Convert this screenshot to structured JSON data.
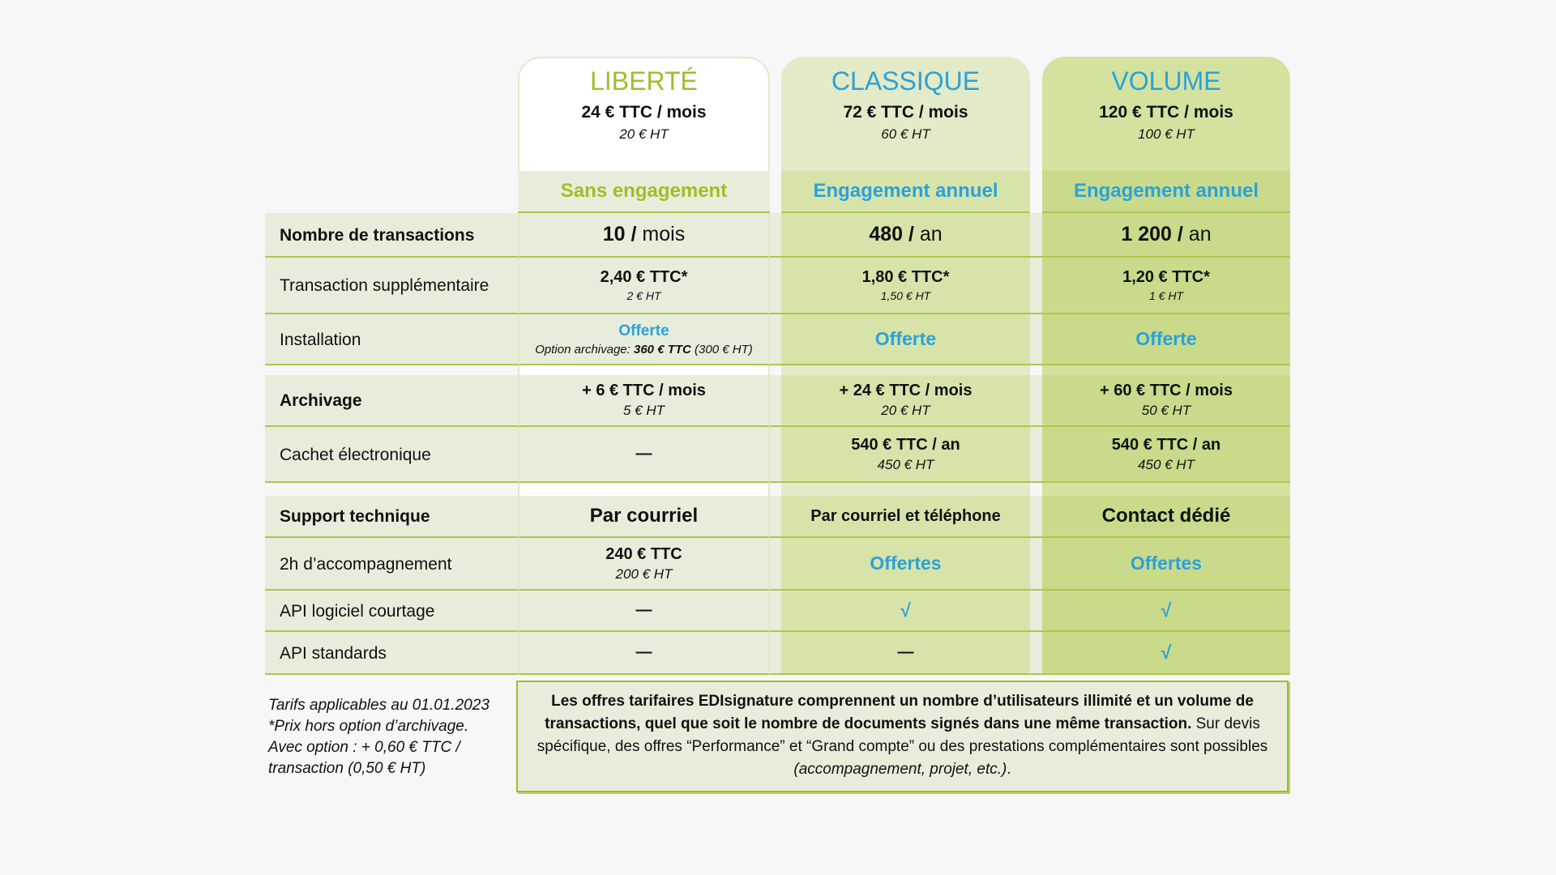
{
  "plans": [
    {
      "name": "LIBERTÉ",
      "price": "24 € TTC / mois",
      "price_ht": "20 € HT",
      "engagement": "Sans engagement"
    },
    {
      "name": "CLASSIQUE",
      "price": "72 € TTC / mois",
      "price_ht": "60 € HT",
      "engagement": "Engagement annuel"
    },
    {
      "name": "VOLUME",
      "price": "120 € TTC / mois",
      "price_ht": "100 € HT",
      "engagement": "Engagement annuel"
    }
  ],
  "rows": [
    {
      "label": "Nombre de transactions",
      "cells": [
        {
          "value": "10 /",
          "unit": "mois"
        },
        {
          "value": "480 /",
          "unit": "an"
        },
        {
          "value": "1 200 /",
          "unit": "an"
        }
      ]
    },
    {
      "label": "Transaction supplémentaire",
      "cells": [
        {
          "main": "2,40 € TTC*",
          "sub": "2 € HT"
        },
        {
          "main": "1,80 € TTC*",
          "sub": "1,50 € HT"
        },
        {
          "main": "1,20 € TTC*",
          "sub": "1 € HT"
        }
      ]
    },
    {
      "label": "Installation",
      "cells": [
        {
          "highlight": "Offerte",
          "note": {
            "label": "Option archivage:",
            "price": "360 € TTC",
            "ht": "(300 € HT)"
          }
        },
        {
          "highlight": "Offerte"
        },
        {
          "highlight": "Offerte"
        }
      ]
    },
    {
      "label": "Archivage",
      "cells": [
        {
          "main": "+ 6 € TTC / mois",
          "sub": "5 € HT"
        },
        {
          "main": "+ 24 € TTC / mois",
          "sub": "20 € HT"
        },
        {
          "main": "+ 60 € TTC / mois",
          "sub": "50 € HT"
        }
      ]
    },
    {
      "label": "Cachet électronique",
      "cells": [
        {
          "main": "—"
        },
        {
          "main": "540 € TTC / an",
          "sub": "450 € HT"
        },
        {
          "main": "540 € TTC / an",
          "sub": "450 € HT"
        }
      ]
    },
    {
      "label": "Support technique",
      "cells": [
        {
          "main": "Par courriel"
        },
        {
          "main": "Par courriel et téléphone"
        },
        {
          "main": "Contact dédié"
        }
      ]
    },
    {
      "label": "2h d’accompagnement",
      "cells": [
        {
          "main": "240 € TTC",
          "sub": "200 € HT"
        },
        {
          "highlight": "Offertes"
        },
        {
          "highlight": "Offertes"
        }
      ]
    },
    {
      "label": "API logiciel courtage",
      "cells": [
        {
          "main": "—"
        },
        {
          "highlight": "√"
        },
        {
          "highlight": "√"
        }
      ]
    },
    {
      "label": "API standards",
      "cells": [
        {
          "main": "—"
        },
        {
          "main": "—"
        },
        {
          "highlight": "√"
        }
      ]
    }
  ],
  "notes": [
    "Tarifs applicables au 01.01.2023",
    "*Prix hors option d’archivage.",
    "Avec option : + 0,60 € TTC / transaction (0,50 € HT)"
  ],
  "summary": {
    "strong": "Les offres tarifaires EDIsignature comprennent un nombre d’utilisateurs illimité et un volume de transactions, quel que soit le nombre de documents signés dans une même transaction.",
    "text": "Sur devis spécifique, des offres “Performance” et “Grand compte” ou des prestations complémentaires sont possibles",
    "em": "(accompagnement, projet, etc.)",
    "end": "."
  }
}
